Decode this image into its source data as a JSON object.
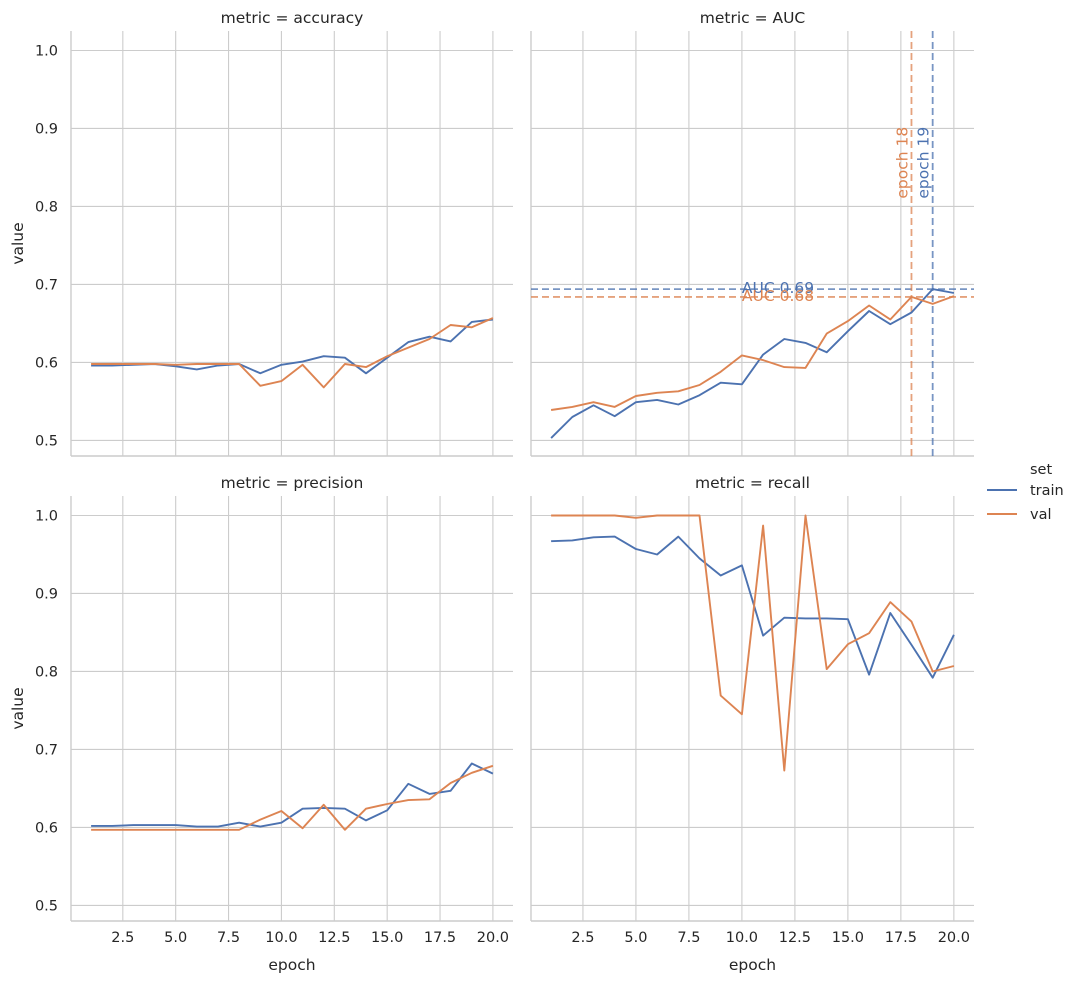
{
  "colors": {
    "train": "#4c72b0",
    "val": "#dd8452",
    "grid": "#cccccc",
    "axis": "#cccccc"
  },
  "chart_data": {
    "type": "line",
    "layout": "facet-grid 2x2",
    "x_label": "epoch",
    "y_label": "value",
    "xlim": [
      0.05,
      20.95
    ],
    "ylim": [
      0.48,
      1.025
    ],
    "x_ticks": [
      2.5,
      5.0,
      7.5,
      10.0,
      12.5,
      15.0,
      17.5,
      20.0
    ],
    "x_tick_labels": [
      "2.5",
      "5.0",
      "7.5",
      "10.0",
      "12.5",
      "15.0",
      "17.5",
      "20.0"
    ],
    "y_ticks": [
      0.5,
      0.6,
      0.7,
      0.8,
      0.9,
      1.0
    ],
    "y_tick_labels": [
      "0.5",
      "0.6",
      "0.7",
      "0.8",
      "0.9",
      "1.0"
    ],
    "grid": true,
    "legend": {
      "title": "set",
      "position": "right",
      "entries": [
        "train",
        "val"
      ]
    },
    "x": [
      1,
      2,
      3,
      4,
      5,
      6,
      7,
      8,
      9,
      10,
      11,
      12,
      13,
      14,
      15,
      16,
      17,
      18,
      19,
      20
    ],
    "panels": [
      {
        "title": "metric = accuracy",
        "series": [
          {
            "name": "train",
            "values": [
              0.596,
              0.596,
              0.597,
              0.598,
              0.595,
              0.591,
              0.596,
              0.598,
              0.586,
              0.597,
              0.601,
              0.608,
              0.606,
              0.586,
              0.606,
              0.626,
              0.633,
              0.627,
              0.652,
              0.655
            ]
          },
          {
            "name": "val",
            "values": [
              0.598,
              0.598,
              0.598,
              0.598,
              0.597,
              0.598,
              0.598,
              0.598,
              0.57,
              0.576,
              0.597,
              0.568,
              0.598,
              0.594,
              0.608,
              0.619,
              0.63,
              0.648,
              0.645,
              0.657
            ]
          }
        ]
      },
      {
        "title": "metric = AUC",
        "series": [
          {
            "name": "train",
            "values": [
              0.503,
              0.53,
              0.545,
              0.531,
              0.549,
              0.552,
              0.546,
              0.558,
              0.574,
              0.572,
              0.61,
              0.63,
              0.625,
              0.613,
              0.64,
              0.666,
              0.649,
              0.664,
              0.694,
              0.689
            ]
          },
          {
            "name": "val",
            "values": [
              0.539,
              0.543,
              0.549,
              0.543,
              0.557,
              0.561,
              0.563,
              0.571,
              0.588,
              0.609,
              0.603,
              0.594,
              0.593,
              0.637,
              0.653,
              0.673,
              0.655,
              0.684,
              0.675,
              0.685
            ]
          }
        ],
        "annotations": [
          {
            "series": "train",
            "type": "hline",
            "y": 0.694,
            "label": "AUC 0.69",
            "label_x": 10.0
          },
          {
            "series": "val",
            "type": "hline",
            "y": 0.684,
            "label": "AUC 0.68",
            "label_x": 10.0
          },
          {
            "series": "train",
            "type": "vline",
            "x": 19,
            "label": "epoch 19",
            "label_y": 0.81
          },
          {
            "series": "val",
            "type": "vline",
            "x": 18,
            "label": "epoch 18",
            "label_y": 0.81
          }
        ]
      },
      {
        "title": "metric = precision",
        "series": [
          {
            "name": "train",
            "values": [
              0.602,
              0.602,
              0.603,
              0.603,
              0.603,
              0.601,
              0.601,
              0.606,
              0.601,
              0.606,
              0.624,
              0.625,
              0.624,
              0.609,
              0.622,
              0.656,
              0.643,
              0.647,
              0.682,
              0.669
            ]
          },
          {
            "name": "val",
            "values": [
              0.597,
              0.597,
              0.597,
              0.597,
              0.597,
              0.597,
              0.597,
              0.597,
              0.61,
              0.621,
              0.599,
              0.629,
              0.597,
              0.624,
              0.63,
              0.635,
              0.636,
              0.657,
              0.67,
              0.679
            ]
          }
        ]
      },
      {
        "title": "metric = recall",
        "series": [
          {
            "name": "train",
            "values": [
              0.967,
              0.968,
              0.972,
              0.973,
              0.957,
              0.95,
              0.973,
              0.945,
              0.923,
              0.936,
              0.846,
              0.869,
              0.868,
              0.868,
              0.867,
              0.796,
              0.875,
              0.834,
              0.792,
              0.847
            ]
          },
          {
            "name": "val",
            "values": [
              1.0,
              1.0,
              1.0,
              1.0,
              0.997,
              1.0,
              1.0,
              1.0,
              0.769,
              0.745,
              0.987,
              0.673,
              1.0,
              0.803,
              0.835,
              0.849,
              0.889,
              0.864,
              0.8,
              0.807
            ]
          }
        ]
      }
    ]
  }
}
